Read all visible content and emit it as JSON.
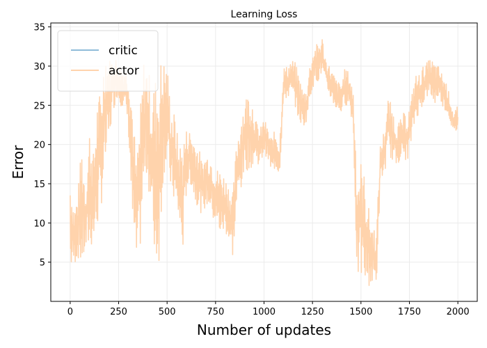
{
  "chart_data": {
    "type": "line",
    "title": "Learning Loss",
    "xlabel": "Number of updates",
    "ylabel": "Error",
    "xlim": [
      -100,
      2100
    ],
    "ylim": [
      0,
      35.5
    ],
    "xticks": [
      0,
      250,
      500,
      750,
      1000,
      1250,
      1500,
      1750,
      2000
    ],
    "yticks": [
      5,
      10,
      15,
      20,
      25,
      30,
      35
    ],
    "grid": true,
    "legend": {
      "placement": "upper-left",
      "entries": [
        {
          "label": "critic",
          "color": "#8fbcd9"
        },
        {
          "label": "actor",
          "color": "#ffd3ac"
        }
      ]
    },
    "series": [
      {
        "name": "actor",
        "color": "#ffd3ac",
        "x": [
          0,
          20,
          40,
          60,
          80,
          100,
          120,
          140,
          160,
          180,
          200,
          220,
          240,
          260,
          280,
          300,
          320,
          340,
          360,
          380,
          400,
          420,
          440,
          460,
          480,
          500,
          520,
          540,
          560,
          580,
          600,
          620,
          640,
          660,
          680,
          700,
          720,
          740,
          760,
          780,
          800,
          820,
          840,
          860,
          880,
          900,
          920,
          940,
          960,
          980,
          1000,
          1020,
          1040,
          1060,
          1080,
          1100,
          1120,
          1140,
          1160,
          1180,
          1200,
          1220,
          1240,
          1260,
          1280,
          1300,
          1320,
          1340,
          1360,
          1380,
          1400,
          1420,
          1440,
          1460,
          1480,
          1500,
          1520,
          1540,
          1560,
          1580,
          1600,
          1620,
          1640,
          1660,
          1680,
          1700,
          1720,
          1740,
          1760,
          1780,
          1800,
          1820,
          1840,
          1860,
          1880,
          1900,
          1920,
          1940,
          1960,
          1980,
          2000
        ],
        "low": [
          3.5,
          4.5,
          5.5,
          4.0,
          6.0,
          6.5,
          7.0,
          9.0,
          12.0,
          16.0,
          20.0,
          24.0,
          26.0,
          25.0,
          24.5,
          22.0,
          9.0,
          4.0,
          6.0,
          14.0,
          16.0,
          9.0,
          4.0,
          5.0,
          16.0,
          17.0,
          14.0,
          12.0,
          10.0,
          5.5,
          14.0,
          15.0,
          13.0,
          12.0,
          11.0,
          12.0,
          12.0,
          10.0,
          9.0,
          8.0,
          9.0,
          7.0,
          5.5,
          12.0,
          14.0,
          16.0,
          17.0,
          17.0,
          18.0,
          17.0,
          19.0,
          18.0,
          16.0,
          17.0,
          16.0,
          25.0,
          26.0,
          26.0,
          25.0,
          23.0,
          22.0,
          23.0,
          26.0,
          28.0,
          28.0,
          29.0,
          27.0,
          26.0,
          25.0,
          24.0,
          24.0,
          25.0,
          25.0,
          22.0,
          2.5,
          3.0,
          2.0,
          2.0,
          2.0,
          2.0,
          15.0,
          16.0,
          19.0,
          18.0,
          17.0,
          18.0,
          18.0,
          18.0,
          20.0,
          23.0,
          24.0,
          25.0,
          26.0,
          26.0,
          25.0,
          26.0,
          25.0,
          24.0,
          23.0,
          21.0,
          22.0
        ],
        "high": [
          16.5,
          12.0,
          14.0,
          20.5,
          15.0,
          22.5,
          19.0,
          26.0,
          27.0,
          33.5,
          31.0,
          31.5,
          31.0,
          30.0,
          30.0,
          30.0,
          27.0,
          18.0,
          24.0,
          31.0,
          30.5,
          27.0,
          29.0,
          31.0,
          31.0,
          30.5,
          25.0,
          24.0,
          20.0,
          21.0,
          22.0,
          22.0,
          21.0,
          20.0,
          18.0,
          19.0,
          19.0,
          18.0,
          17.0,
          17.0,
          16.0,
          15.0,
          14.0,
          21.0,
          24.0,
          26.0,
          27.0,
          26.0,
          23.0,
          22.0,
          23.5,
          22.0,
          21.0,
          22.0,
          20.0,
          30.0,
          30.0,
          31.0,
          30.5,
          29.0,
          27.0,
          27.0,
          31.0,
          32.5,
          33.0,
          33.8,
          31.0,
          30.0,
          29.0,
          28.0,
          28.0,
          30.0,
          29.0,
          27.0,
          17.0,
          18.0,
          16.0,
          12.0,
          10.0,
          9.0,
          20.0,
          22.0,
          26.0,
          25.0,
          23.0,
          23.0,
          24.0,
          24.0,
          26.0,
          29.0,
          29.0,
          30.0,
          30.5,
          31.0,
          30.5,
          30.0,
          29.0,
          28.0,
          26.0,
          24.0,
          25.0
        ]
      }
    ]
  }
}
